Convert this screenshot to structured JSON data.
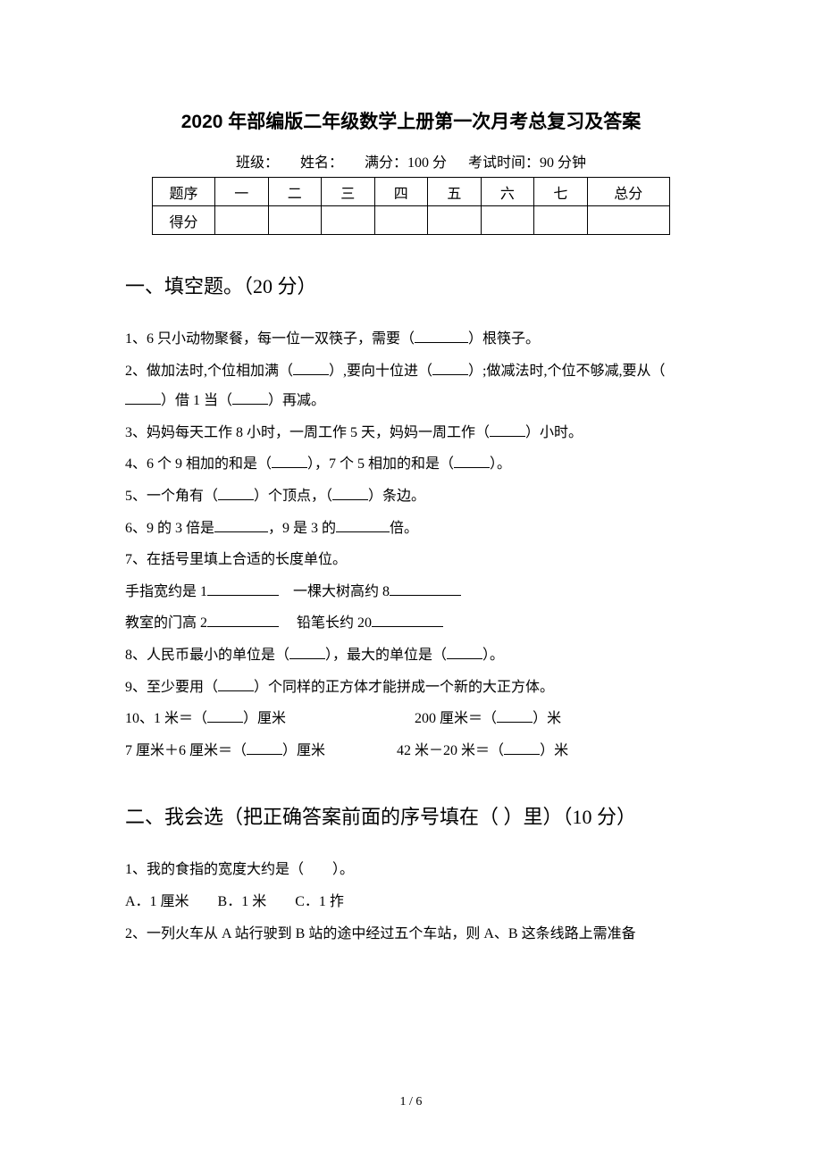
{
  "title": "2020 年部编版二年级数学上册第一次月考总复习及答案",
  "meta": {
    "class_label": "班级：",
    "name_label": "姓名：",
    "full_label": "满分：100 分",
    "time_label": "考试时间：90 分钟"
  },
  "score_table": {
    "row1": [
      "题序",
      "一",
      "二",
      "三",
      "四",
      "五",
      "六",
      "七",
      "总分"
    ],
    "row2_label": "得分"
  },
  "section1": {
    "heading": "一、填空题。（20 分）",
    "q1_a": "1、6 只小动物聚餐，每一位一双筷子，需要（",
    "q1_b": "）根筷子。",
    "q2_a": "2、做加法时,个位相加满（",
    "q2_b": "）,要向十位进（",
    "q2_c": "）;做减法时,个位不够减,要从（",
    "q2_d": "）借 1 当（",
    "q2_e": "）再减。",
    "q3_a": "3、妈妈每天工作 8 小时，一周工作 5 天，妈妈一周工作（",
    "q3_b": "）小时。",
    "q4_a": "4、6 个 9 相加的和是（",
    "q4_b": "），7 个 5 相加的和是（",
    "q4_c": "）。",
    "q5_a": "5、一个角有（",
    "q5_b": "）个顶点，（",
    "q5_c": "）条边。",
    "q6_a": "6、9 的 3 倍是",
    "q6_b": "，9 是 3 的",
    "q6_c": "倍。",
    "q7": "7、在括号里填上合适的长度单位。",
    "q7_l1a": "手指宽约是 1",
    "q7_l1b": "一棵大树高约 8",
    "q7_l2a": "教室的门高 2",
    "q7_l2b": "铅笔长约 20",
    "q8_a": "8、人民币最小的单位是（",
    "q8_b": "），最大的单位是（",
    "q8_c": "）。",
    "q9_a": "9、至少要用（",
    "q9_b": "）个同样的正方体才能拼成一个新的大正方体。",
    "q10_a": "10、1 米＝（",
    "q10_b": "）厘米",
    "q10_c": "200 厘米＝（",
    "q10_d": "）米",
    "q10_2a": "7 厘米＋6 厘米＝（",
    "q10_2b": "）厘米",
    "q10_2c": "42 米－20 米＝（",
    "q10_2d": "）米"
  },
  "section2": {
    "heading": "二、我会选（把正确答案前面的序号填在（ ）里）（10 分）",
    "q1": "1、我的食指的宽度大约是（　　）。",
    "q1_opts": "A．1 厘米　　B．1 米　　C．1 拃",
    "q2": "2、一列火车从 A 站行驶到 B 站的途中经过五个车站，则 A、B 这条线路上需准备"
  },
  "page_footer": "1 / 6"
}
